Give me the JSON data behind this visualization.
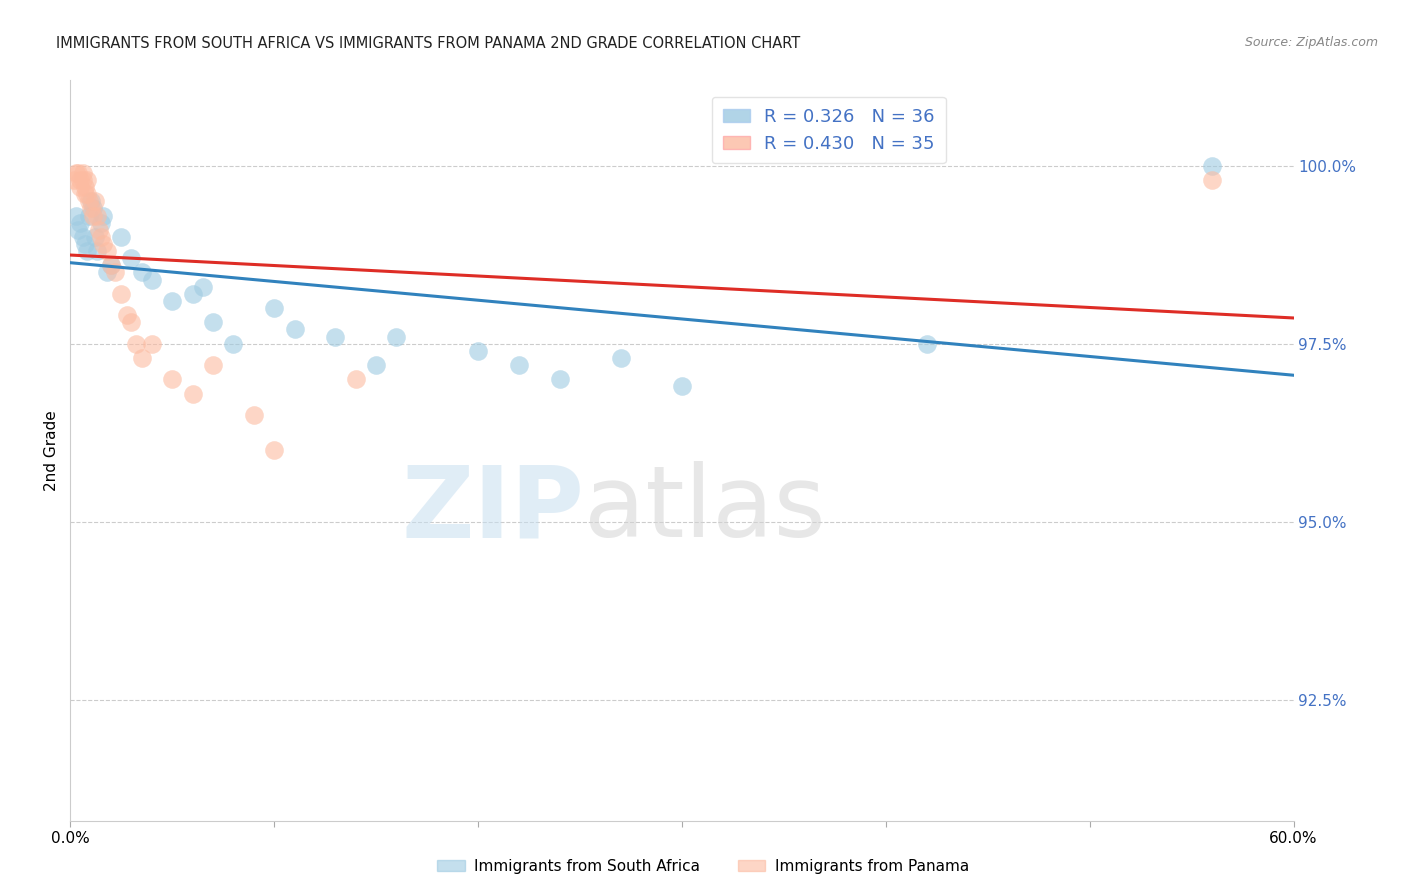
{
  "title": "IMMIGRANTS FROM SOUTH AFRICA VS IMMIGRANTS FROM PANAMA 2ND GRADE CORRELATION CHART",
  "source": "Source: ZipAtlas.com",
  "ylabel": "2nd Grade",
  "ytick_labels": [
    "100.0%",
    "97.5%",
    "95.0%",
    "92.5%"
  ],
  "ytick_values": [
    1.0,
    0.975,
    0.95,
    0.925
  ],
  "xlim": [
    0.0,
    0.6
  ],
  "ylim": [
    0.908,
    1.012
  ],
  "legend_blue_R": "R = 0.326",
  "legend_blue_N": "N = 36",
  "legend_pink_R": "R = 0.430",
  "legend_pink_N": "N = 35",
  "legend_label_blue": "Immigrants from South Africa",
  "legend_label_pink": "Immigrants from Panama",
  "blue_color": "#9ecae1",
  "pink_color": "#fcbba1",
  "trendline_blue": "#3182bd",
  "trendline_pink": "#de2d26",
  "blue_x": [
    0.003,
    0.004,
    0.005,
    0.006,
    0.007,
    0.008,
    0.009,
    0.01,
    0.011,
    0.012,
    0.013,
    0.015,
    0.016,
    0.018,
    0.02,
    0.025,
    0.03,
    0.035,
    0.04,
    0.05,
    0.06,
    0.065,
    0.07,
    0.08,
    0.1,
    0.11,
    0.13,
    0.15,
    0.16,
    0.2,
    0.22,
    0.24,
    0.27,
    0.3,
    0.42,
    0.56
  ],
  "blue_y": [
    0.993,
    0.991,
    0.992,
    0.99,
    0.989,
    0.988,
    0.993,
    0.995,
    0.994,
    0.99,
    0.988,
    0.992,
    0.993,
    0.985,
    0.986,
    0.99,
    0.987,
    0.985,
    0.984,
    0.981,
    0.982,
    0.983,
    0.978,
    0.975,
    0.98,
    0.977,
    0.976,
    0.972,
    0.976,
    0.974,
    0.972,
    0.97,
    0.973,
    0.969,
    0.975,
    1.0
  ],
  "pink_x": [
    0.002,
    0.003,
    0.004,
    0.005,
    0.005,
    0.006,
    0.006,
    0.007,
    0.007,
    0.008,
    0.008,
    0.009,
    0.01,
    0.011,
    0.012,
    0.013,
    0.014,
    0.015,
    0.016,
    0.018,
    0.02,
    0.022,
    0.025,
    0.028,
    0.03,
    0.032,
    0.035,
    0.04,
    0.05,
    0.06,
    0.07,
    0.09,
    0.1,
    0.14,
    0.56
  ],
  "pink_y": [
    0.998,
    0.999,
    0.999,
    0.998,
    0.997,
    0.999,
    0.998,
    0.997,
    0.996,
    0.998,
    0.996,
    0.995,
    0.994,
    0.993,
    0.995,
    0.993,
    0.991,
    0.99,
    0.989,
    0.988,
    0.986,
    0.985,
    0.982,
    0.979,
    0.978,
    0.975,
    0.973,
    0.975,
    0.97,
    0.968,
    0.972,
    0.965,
    0.96,
    0.97,
    0.998
  ],
  "watermark_zip": "ZIP",
  "watermark_atlas": "atlas",
  "background_color": "#ffffff"
}
